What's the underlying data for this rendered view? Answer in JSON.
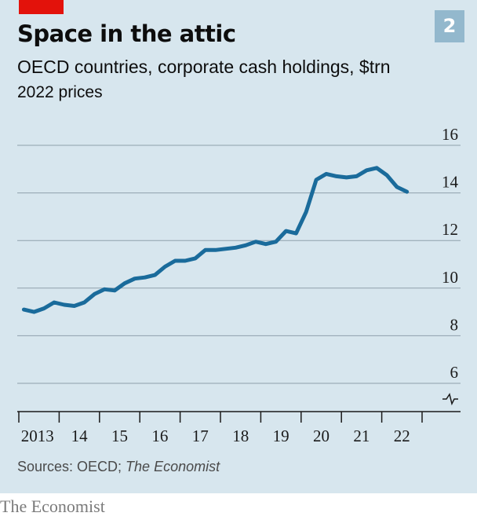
{
  "chart_number": "2",
  "header": {
    "title": "Space in the attic",
    "subtitle": "OECD countries, corporate cash holdings, $trn",
    "unit_note": "2022 prices"
  },
  "source": {
    "prefix": "Sources: OECD; ",
    "italic": "The Economist"
  },
  "logo": "The Economist",
  "colors": {
    "background": "#d7e6ee",
    "line": "#1a6b9b",
    "accent_red": "#e3120b",
    "badge": "#93b8cd"
  },
  "chart_data": {
    "type": "line",
    "title": "Space in the attic",
    "subtitle": "OECD countries, corporate cash holdings, $trn",
    "xlabel": "",
    "ylabel": "",
    "ylim": [
      6,
      16
    ],
    "yticks": [
      6,
      8,
      10,
      12,
      14,
      16
    ],
    "ytick_labels": [
      "6",
      "8",
      "10",
      "12",
      "14",
      "16"
    ],
    "y_axis_break": true,
    "y_axis_position": "right",
    "grid": true,
    "xlim": [
      2013,
      2023
    ],
    "xticks": [
      2013,
      2014,
      2015,
      2016,
      2017,
      2018,
      2019,
      2020,
      2021,
      2022,
      2023
    ],
    "xtick_labels": [
      "2013",
      "14",
      "15",
      "16",
      "17",
      "18",
      "19",
      "20",
      "21",
      "22"
    ],
    "series": [
      {
        "x": [
          2013.125,
          2013.375,
          2013.625,
          2013.875,
          2014.125,
          2014.375,
          2014.625,
          2014.875,
          2015.125,
          2015.375,
          2015.625,
          2015.875,
          2016.125,
          2016.375,
          2016.625,
          2016.875,
          2017.125,
          2017.375,
          2017.625,
          2017.875,
          2018.125,
          2018.375,
          2018.625,
          2018.875,
          2019.125,
          2019.375,
          2019.625,
          2019.875,
          2020.125,
          2020.375,
          2020.625,
          2020.875,
          2021.125,
          2021.375,
          2021.625,
          2021.875,
          2022.125,
          2022.375,
          2022.625
        ],
        "values": [
          9.1,
          9.0,
          9.15,
          9.4,
          9.3,
          9.25,
          9.4,
          9.75,
          9.95,
          9.9,
          10.2,
          10.4,
          10.45,
          10.55,
          10.9,
          11.15,
          11.15,
          11.25,
          11.6,
          11.6,
          11.65,
          11.7,
          11.8,
          11.95,
          11.85,
          11.95,
          12.4,
          12.3,
          13.2,
          14.55,
          14.8,
          14.7,
          14.65,
          14.7,
          14.95,
          15.05,
          14.75,
          14.25,
          14.05
        ]
      }
    ]
  }
}
